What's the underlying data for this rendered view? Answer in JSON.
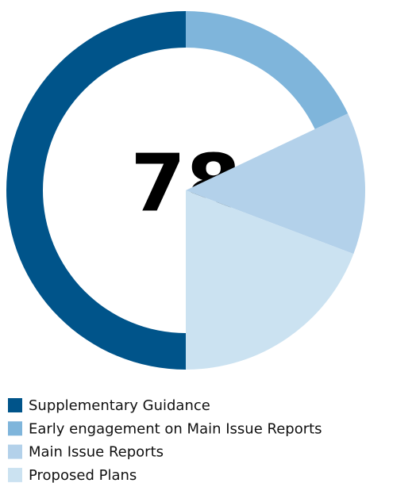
{
  "chart_data": {
    "type": "pie",
    "center_label": "78",
    "categories": [
      "Supplementary Guidance",
      "Early engagement on Main Issue Reports",
      "Main Issue Reports",
      "Proposed Plans"
    ],
    "values": [
      39,
      14,
      10,
      15
    ],
    "colors": [
      "#00548a",
      "#7fb5db",
      "#b3d1ea",
      "#cbe2f1"
    ],
    "start_angle": 180,
    "legend": "bottom"
  }
}
